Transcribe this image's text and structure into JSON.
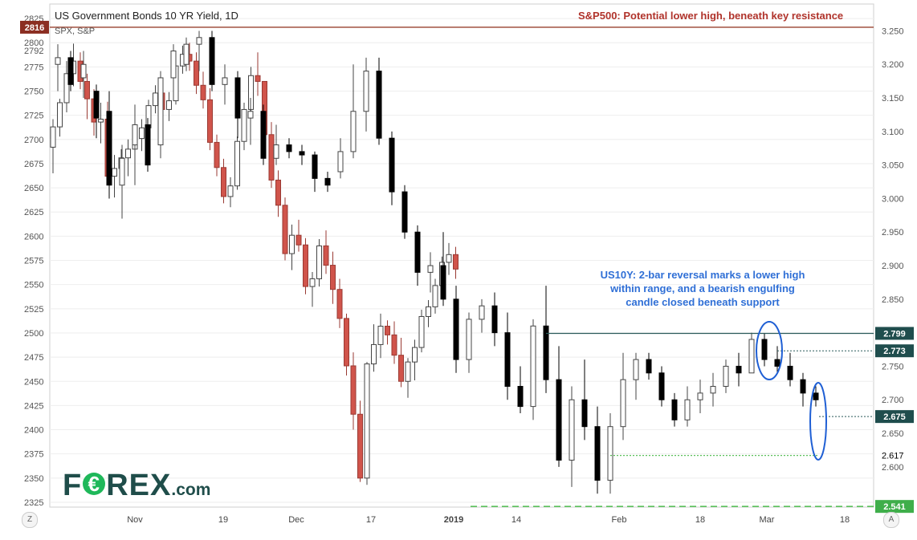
{
  "title": "US Government Bonds 10 YR Yield, 1D",
  "subtitle": "SPX, S&P",
  "annotations": {
    "spx": "S&P500: Potential lower high, beneath key resistance",
    "us10y_line1": "US10Y: 2-bar reversal marks a lower high",
    "us10y_line2": "within range, and a bearish engulfing",
    "us10y_line3": "candle closed beneath support"
  },
  "logo": {
    "main": "F",
    "after_icon": "REX",
    "suffix": ".com",
    "icon_glyph": "€"
  },
  "buttons": {
    "left": "Z",
    "right": "A"
  },
  "colors": {
    "bull_fill": "#ffffff",
    "bull_stroke": "#444444",
    "spx_bear": "#d0544b",
    "spx_bear_stroke": "#9a3a33",
    "us_bear": "#000000",
    "resistance": "#a85f4f",
    "spx_marker": "#8b2e22",
    "support_green": "#5bbf5b",
    "ellipse_blue": "#1f5fd4",
    "level_box": "#1f4d4d",
    "grid": "#eeeeee"
  },
  "chart_data": {
    "type": "candlestick",
    "x_tick_labels": [
      "Nov",
      "19",
      "Dec",
      "17",
      "2019",
      "14",
      "Feb",
      "18",
      "Mar",
      "18"
    ],
    "left_axis": {
      "series": "SPX",
      "range": [
        2320,
        2840
      ],
      "ticks": [
        2325,
        2350,
        2375,
        2400,
        2425,
        2450,
        2475,
        2500,
        2525,
        2550,
        2575,
        2600,
        2625,
        2650,
        2675,
        2700,
        2725,
        2750,
        2775,
        2800,
        2825
      ],
      "extra_ticks": [
        2792
      ],
      "marker": 2816
    },
    "right_axis": {
      "series": "US10Y",
      "range": [
        2.54,
        3.29
      ],
      "ticks": [
        "2.600",
        "2.650",
        "2.700",
        "2.750",
        "2.800",
        "2.850",
        "2.900",
        "2.950",
        "3.000",
        "3.050",
        "3.100",
        "3.150",
        "3.200",
        "3.250"
      ],
      "extra_tick": "2.617",
      "level_labels": [
        "2.799",
        "2.773",
        "2.675",
        "2.541"
      ]
    },
    "spx_candles": [
      [
        2692,
        2721,
        2665,
        2713
      ],
      [
        2713,
        2742,
        2703,
        2738
      ],
      [
        2738,
        2781,
        2728,
        2768
      ],
      [
        2768,
        2799,
        2755,
        2781
      ],
      [
        2781,
        2790,
        2752,
        2760
      ],
      [
        2760,
        2768,
        2721,
        2742
      ],
      [
        2742,
        2752,
        2704,
        2718
      ],
      [
        2718,
        2738,
        2696,
        2721
      ],
      [
        2721,
        2739,
        2655,
        2662
      ],
      [
        2662,
        2684,
        2640,
        2670
      ],
      [
        2670,
        2690,
        2655,
        2681
      ],
      [
        2681,
        2700,
        2662,
        2690
      ],
      [
        2690,
        2707,
        2674,
        2701
      ],
      [
        2701,
        2721,
        2688,
        2712
      ],
      [
        2712,
        2741,
        2703,
        2735
      ],
      [
        2735,
        2756,
        2727,
        2748
      ],
      [
        2748,
        2755,
        2723,
        2731
      ],
      [
        2731,
        2749,
        2719,
        2740
      ],
      [
        2740,
        2782,
        2736,
        2776
      ],
      [
        2776,
        2797,
        2768,
        2788
      ],
      [
        2788,
        2800,
        2771,
        2781
      ],
      [
        2781,
        2790,
        2747,
        2756
      ],
      [
        2756,
        2770,
        2732,
        2741
      ],
      [
        2741,
        2753,
        2689,
        2697
      ],
      [
        2697,
        2705,
        2662,
        2671
      ],
      [
        2671,
        2680,
        2634,
        2641
      ],
      [
        2641,
        2661,
        2630,
        2652
      ],
      [
        2652,
        2703,
        2648,
        2698
      ],
      [
        2698,
        2738,
        2689,
        2731
      ],
      [
        2731,
        2775,
        2727,
        2766
      ],
      [
        2766,
        2790,
        2745,
        2760
      ],
      [
        2760,
        2760,
        2704,
        2705
      ],
      [
        2705,
        2718,
        2650,
        2658
      ],
      [
        2658,
        2668,
        2620,
        2632
      ],
      [
        2632,
        2640,
        2575,
        2582
      ],
      [
        2582,
        2612,
        2565,
        2601
      ],
      [
        2601,
        2617,
        2584,
        2591
      ],
      [
        2591,
        2598,
        2540,
        2548
      ],
      [
        2548,
        2563,
        2527,
        2556
      ],
      [
        2556,
        2597,
        2548,
        2590
      ],
      [
        2590,
        2606,
        2561,
        2570
      ],
      [
        2570,
        2584,
        2530,
        2545
      ],
      [
        2545,
        2556,
        2505,
        2515
      ],
      [
        2515,
        2520,
        2456,
        2466
      ],
      [
        2466,
        2480,
        2400,
        2416
      ],
      [
        2416,
        2430,
        2346,
        2350
      ],
      [
        2350,
        2470,
        2343,
        2468
      ],
      [
        2468,
        2509,
        2460,
        2488
      ],
      [
        2488,
        2520,
        2474,
        2507
      ],
      [
        2507,
        2513,
        2488,
        2498
      ],
      [
        2498,
        2512,
        2468,
        2477
      ],
      [
        2477,
        2495,
        2444,
        2450
      ],
      [
        2450,
        2474,
        2433,
        2470
      ],
      [
        2470,
        2493,
        2451,
        2485
      ],
      [
        2485,
        2524,
        2480,
        2517
      ],
      [
        2517,
        2534,
        2506,
        2527
      ],
      [
        2527,
        2556,
        2520,
        2549
      ],
      [
        2549,
        2579,
        2541,
        2573
      ],
      [
        2573,
        2593,
        2560,
        2581
      ],
      [
        2581,
        2589,
        2556,
        2566
      ]
    ],
    "us10y_candles": [
      [
        3.2,
        3.23,
        3.16,
        3.21
      ],
      [
        3.21,
        3.22,
        3.16,
        3.17
      ],
      [
        3.18,
        3.22,
        3.15,
        3.2
      ],
      [
        3.16,
        3.17,
        3.09,
        3.12
      ],
      [
        3.13,
        3.16,
        3.0,
        3.02
      ],
      [
        3.02,
        3.08,
        2.97,
        3.06
      ],
      [
        3.08,
        3.14,
        3.02,
        3.11
      ],
      [
        3.11,
        3.12,
        3.04,
        3.05
      ],
      [
        3.08,
        3.19,
        3.06,
        3.18
      ],
      [
        3.18,
        3.23,
        3.15,
        3.22
      ],
      [
        3.2,
        3.24,
        3.19,
        3.23
      ],
      [
        3.23,
        3.25,
        3.19,
        3.24
      ],
      [
        3.24,
        3.25,
        3.16,
        3.17
      ],
      [
        3.17,
        3.2,
        3.14,
        3.18
      ],
      [
        3.18,
        3.19,
        3.09,
        3.12
      ],
      [
        3.12,
        3.15,
        3.08,
        3.13
      ],
      [
        3.13,
        3.14,
        3.05,
        3.06
      ],
      [
        3.06,
        3.11,
        3.05,
        3.08
      ],
      [
        3.08,
        3.09,
        3.06,
        3.07
      ],
      [
        3.07,
        3.08,
        3.05,
        3.065
      ],
      [
        3.065,
        3.07,
        3.01,
        3.03
      ],
      [
        3.03,
        3.04,
        3.01,
        3.02
      ],
      [
        3.04,
        3.09,
        3.03,
        3.07
      ],
      [
        3.07,
        3.2,
        3.06,
        3.13
      ],
      [
        3.13,
        3.21,
        3.1,
        3.19
      ],
      [
        3.19,
        3.21,
        3.08,
        3.09
      ],
      [
        3.09,
        3.1,
        2.99,
        3.01
      ],
      [
        3.01,
        3.02,
        2.94,
        2.95
      ],
      [
        2.95,
        2.96,
        2.87,
        2.89
      ],
      [
        2.89,
        2.92,
        2.86,
        2.9
      ],
      [
        2.9,
        2.95,
        2.84,
        2.85
      ],
      [
        2.85,
        2.87,
        2.74,
        2.76
      ],
      [
        2.76,
        2.83,
        2.74,
        2.82
      ],
      [
        2.82,
        2.85,
        2.8,
        2.84
      ],
      [
        2.84,
        2.86,
        2.78,
        2.8
      ],
      [
        2.8,
        2.83,
        2.7,
        2.72
      ],
      [
        2.72,
        2.75,
        2.68,
        2.69
      ],
      [
        2.69,
        2.82,
        2.67,
        2.81
      ],
      [
        2.81,
        2.87,
        2.71,
        2.73
      ],
      [
        2.73,
        2.78,
        2.6,
        2.61
      ],
      [
        2.61,
        2.72,
        2.57,
        2.7
      ],
      [
        2.7,
        2.76,
        2.64,
        2.66
      ],
      [
        2.66,
        2.69,
        2.56,
        2.58
      ],
      [
        2.58,
        2.68,
        2.56,
        2.66
      ],
      [
        2.66,
        2.77,
        2.64,
        2.73
      ],
      [
        2.73,
        2.77,
        2.7,
        2.76
      ],
      [
        2.76,
        2.77,
        2.73,
        2.74
      ],
      [
        2.74,
        2.75,
        2.69,
        2.7
      ],
      [
        2.7,
        2.71,
        2.66,
        2.67
      ],
      [
        2.67,
        2.72,
        2.66,
        2.7
      ],
      [
        2.7,
        2.73,
        2.68,
        2.71
      ],
      [
        2.71,
        2.74,
        2.69,
        2.72
      ],
      [
        2.72,
        2.76,
        2.71,
        2.75
      ],
      [
        2.75,
        2.77,
        2.72,
        2.74
      ],
      [
        2.74,
        2.8,
        2.74,
        2.79
      ],
      [
        2.79,
        2.799,
        2.75,
        2.76
      ],
      [
        2.76,
        2.78,
        2.74,
        2.75
      ],
      [
        2.75,
        2.77,
        2.72,
        2.73
      ],
      [
        2.73,
        2.74,
        2.69,
        2.71
      ],
      [
        2.71,
        2.72,
        2.69,
        2.7
      ]
    ]
  }
}
